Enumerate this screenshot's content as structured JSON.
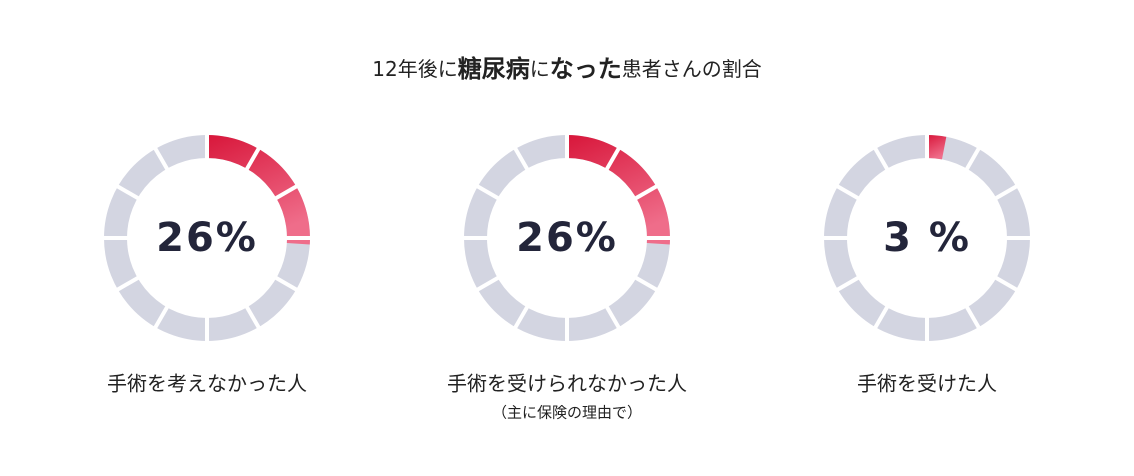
{
  "title": [
    "12年後に",
    "糖尿病",
    "に",
    "なった",
    "患者さんの割合"
  ],
  "title_bold": [
    false,
    true,
    false,
    true,
    false
  ],
  "chart_data": [
    {
      "type": "donut",
      "values": [
        26
      ],
      "value_labels": [
        "26%"
      ],
      "label": "手術を考えなかった人",
      "color": "#d8163a",
      "color_end": "#ef6d8a",
      "track_color": "#d3d5e1"
    },
    {
      "type": "donut",
      "values": [
        26
      ],
      "value_labels": [
        "26%"
      ],
      "label": "手術を受けられなかった人",
      "subtitle": "（主に保険の理由で）",
      "color": "#d8163a",
      "color_end": "#ef6d8a",
      "track_color": "#d3d5e1"
    },
    {
      "type": "donut",
      "values": [
        3
      ],
      "value_labels": [
        "3 %"
      ],
      "label": "手術を受けた人",
      "color": "#d8163a",
      "color_end": "#ef6d8a",
      "track_color": "#d3d5e1"
    }
  ]
}
